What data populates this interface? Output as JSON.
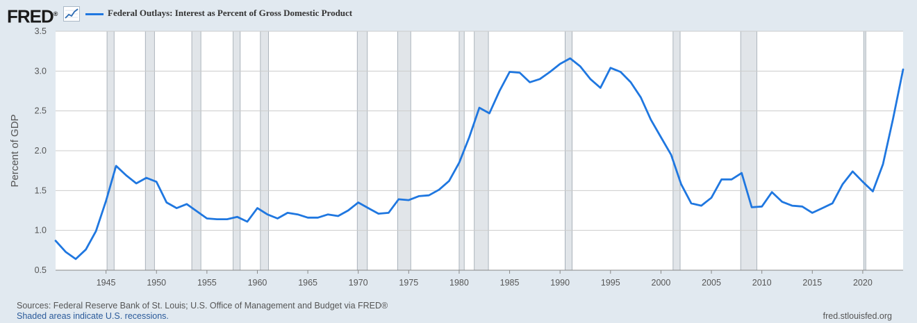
{
  "header": {
    "logo_text": "FRED",
    "logo_mark": "®",
    "logo_icon": "line-chart-icon",
    "series_label": "Federal Outlays: Interest as Percent of Gross Domestic Product"
  },
  "footer": {
    "sources": "Sources: Federal Reserve Bank of St. Louis; U.S. Office of Management and Budget via FRED®",
    "recession_note": "Shaded areas indicate U.S. recessions.",
    "url": "fred.stlouisfed.org"
  },
  "colors": {
    "background": "#e1e9f0",
    "plot_background": "#ffffff",
    "line": "#1f77e0",
    "recession": "#e1e5e9",
    "grid": "#cccccc"
  },
  "chart_data": {
    "type": "line",
    "title": "Federal Outlays: Interest as Percent of Gross Domestic Product",
    "xlabel": "",
    "ylabel": "Percent of GDP",
    "xlim": [
      1940,
      2024
    ],
    "ylim": [
      0.5,
      3.5
    ],
    "grid": true,
    "legend": "top-left",
    "x_ticks": [
      "1945",
      "1950",
      "1955",
      "1960",
      "1965",
      "1970",
      "1975",
      "1980",
      "1985",
      "1990",
      "1995",
      "2000",
      "2005",
      "2010",
      "2015",
      "2020"
    ],
    "y_ticks": [
      "0.5",
      "1.0",
      "1.5",
      "2.0",
      "2.5",
      "3.0",
      "3.5"
    ],
    "recessions": [
      [
        1945.1,
        1945.8
      ],
      [
        1948.9,
        1949.8
      ],
      [
        1953.5,
        1954.4
      ],
      [
        1957.6,
        1958.3
      ],
      [
        1960.3,
        1961.1
      ],
      [
        1969.9,
        1970.9
      ],
      [
        1973.9,
        1975.2
      ],
      [
        1980.0,
        1980.5
      ],
      [
        1981.5,
        1982.9
      ],
      [
        1990.5,
        1991.2
      ],
      [
        2001.2,
        2001.9
      ],
      [
        2007.9,
        2009.5
      ],
      [
        2020.1,
        2020.3
      ]
    ],
    "series": [
      {
        "name": "Federal Outlays: Interest as Percent of Gross Domestic Product",
        "x": [
          1940,
          1941,
          1942,
          1943,
          1944,
          1945,
          1946,
          1947,
          1948,
          1949,
          1950,
          1951,
          1952,
          1953,
          1954,
          1955,
          1956,
          1957,
          1958,
          1959,
          1960,
          1961,
          1962,
          1963,
          1964,
          1965,
          1966,
          1967,
          1968,
          1969,
          1970,
          1971,
          1972,
          1973,
          1974,
          1975,
          1976,
          1977,
          1978,
          1979,
          1980,
          1981,
          1982,
          1983,
          1984,
          1985,
          1986,
          1987,
          1988,
          1989,
          1990,
          1991,
          1992,
          1993,
          1994,
          1995,
          1996,
          1997,
          1998,
          1999,
          2000,
          2001,
          2002,
          2003,
          2004,
          2005,
          2006,
          2007,
          2008,
          2009,
          2010,
          2011,
          2012,
          2013,
          2014,
          2015,
          2016,
          2017,
          2018,
          2019,
          2020,
          2021,
          2022,
          2023,
          2024
        ],
        "values": [
          0.87,
          0.73,
          0.64,
          0.76,
          0.99,
          1.37,
          1.81,
          1.69,
          1.59,
          1.66,
          1.61,
          1.35,
          1.28,
          1.33,
          1.24,
          1.15,
          1.14,
          1.14,
          1.17,
          1.11,
          1.28,
          1.2,
          1.15,
          1.22,
          1.2,
          1.16,
          1.16,
          1.2,
          1.18,
          1.25,
          1.35,
          1.28,
          1.21,
          1.22,
          1.39,
          1.38,
          1.43,
          1.44,
          1.51,
          1.62,
          1.85,
          2.17,
          2.54,
          2.47,
          2.75,
          2.99,
          2.98,
          2.86,
          2.9,
          2.99,
          3.09,
          3.16,
          3.06,
          2.9,
          2.79,
          3.04,
          2.99,
          2.86,
          2.67,
          2.39,
          2.17,
          1.95,
          1.58,
          1.34,
          1.31,
          1.41,
          1.64,
          1.64,
          1.72,
          1.29,
          1.3,
          1.48,
          1.36,
          1.31,
          1.3,
          1.22,
          1.28,
          1.34,
          1.58,
          1.74,
          1.61,
          1.49,
          1.83,
          2.4,
          3.02
        ]
      }
    ]
  }
}
